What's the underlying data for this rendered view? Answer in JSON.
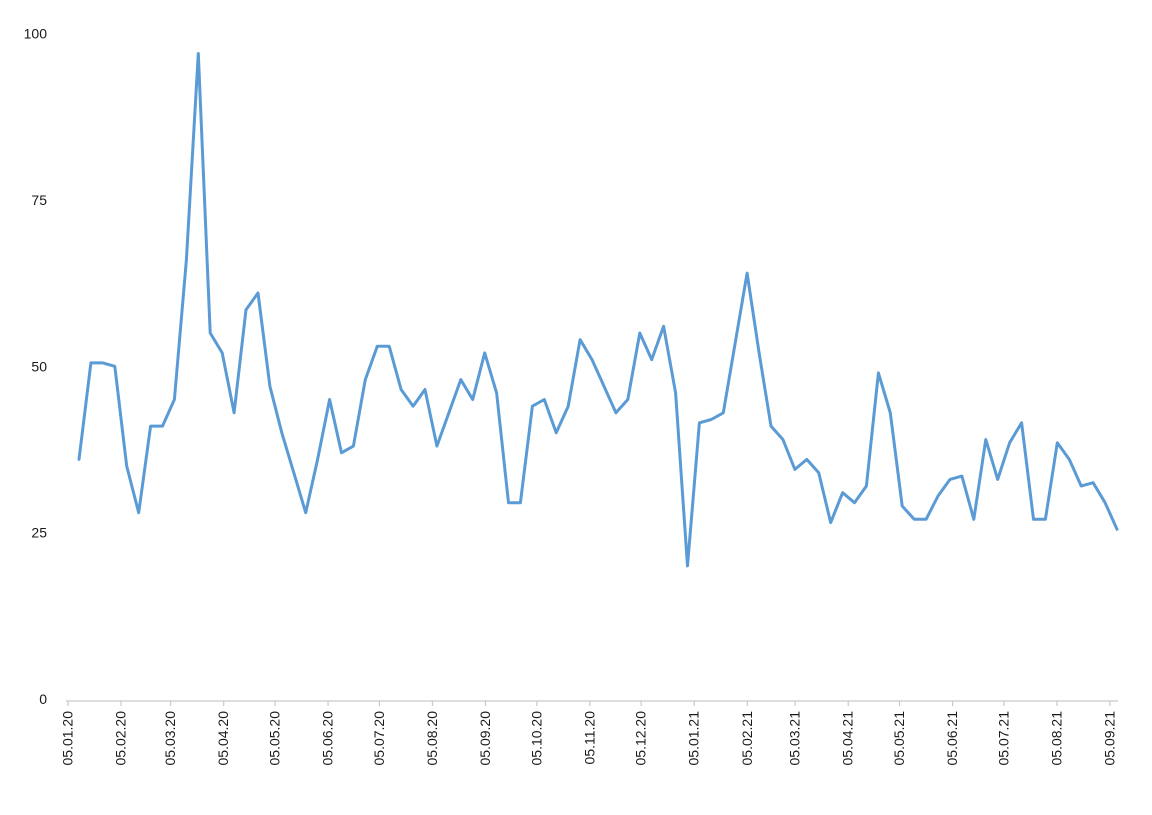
{
  "chart_data": {
    "type": "line",
    "title": "",
    "xlabel": "",
    "ylabel": "",
    "grid": false,
    "legend": false,
    "background": "#ffffff",
    "line_color": "#5B9BD5",
    "axis_color": "#C9C9C9",
    "text_color": "#1A1A1A",
    "ylim": [
      0,
      100
    ],
    "y_ticks": [
      "0",
      "25",
      "50",
      "75",
      "100"
    ],
    "x_step_days": 7,
    "x_ticks": [
      {
        "label": "05.01.20",
        "day": 0
      },
      {
        "label": "05.02.20",
        "day": 31
      },
      {
        "label": "05.03.20",
        "day": 60
      },
      {
        "label": "05.04.20",
        "day": 91
      },
      {
        "label": "05.05.20",
        "day": 121
      },
      {
        "label": "05.06.20",
        "day": 152
      },
      {
        "label": "05.07.20",
        "day": 182
      },
      {
        "label": "05.08.20",
        "day": 213
      },
      {
        "label": "05.09.20",
        "day": 244
      },
      {
        "label": "05.10.20",
        "day": 274
      },
      {
        "label": "05.11.20",
        "day": 305
      },
      {
        "label": "05.12.20",
        "day": 335
      },
      {
        "label": "05.01.21",
        "day": 366
      },
      {
        "label": "05.02.21",
        "day": 397
      },
      {
        "label": "05.03.21",
        "day": 425
      },
      {
        "label": "05.04.21",
        "day": 456
      },
      {
        "label": "05.05.21",
        "day": 486
      },
      {
        "label": "05.06.21",
        "day": 517
      },
      {
        "label": "05.07.21",
        "day": 547
      },
      {
        "label": "05.08.21",
        "day": 578
      },
      {
        "label": "05.09.21",
        "day": 609
      }
    ],
    "series": [
      {
        "name": "weekly-values",
        "color": "#5B9BD5",
        "first_point_label": "05.01.20",
        "last_point_label": "05.09.21",
        "values": [
          36,
          50.5,
          50.5,
          50,
          35,
          28,
          41,
          41,
          45,
          66,
          97,
          55,
          52,
          43,
          58.5,
          61,
          47,
          40,
          34,
          28,
          36,
          45,
          37,
          38,
          48,
          53,
          53,
          46.5,
          44,
          46.5,
          38,
          43,
          48,
          45,
          52,
          46,
          29.5,
          29.5,
          44,
          45,
          40,
          44,
          54,
          51,
          47,
          43,
          45,
          55,
          51,
          56,
          46,
          20,
          41.5,
          42,
          43,
          53.5,
          64,
          52,
          41,
          39,
          34.5,
          36,
          34,
          26.5,
          31,
          29.5,
          32,
          49,
          43,
          29,
          27,
          27,
          30.5,
          33,
          33.5,
          27,
          39,
          33,
          38.5,
          41.5,
          27,
          27,
          38.5,
          36,
          32,
          32.5,
          29.5,
          25.5
        ]
      }
    ]
  }
}
